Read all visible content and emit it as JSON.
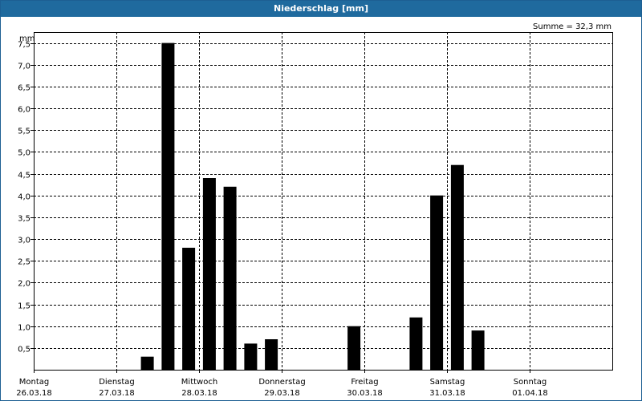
{
  "window": {
    "title": "Niederschlag [mm]"
  },
  "chart_data": {
    "type": "bar",
    "title": "Niederschlag [mm]",
    "ylabel": "mm",
    "annotation": "Summe = 32,3 mm",
    "ylim": [
      0,
      7.75
    ],
    "y_ticks": [
      "0,5",
      "1,0",
      "1,5",
      "2,0",
      "2,5",
      "3,0",
      "3,5",
      "4,0",
      "4,5",
      "5,0",
      "5,5",
      "6,0",
      "6,5",
      "7,0",
      "7,5"
    ],
    "y_tick_values": [
      0.5,
      1.0,
      1.5,
      2.0,
      2.5,
      3.0,
      3.5,
      4.0,
      4.5,
      5.0,
      5.5,
      6.0,
      6.5,
      7.0,
      7.5
    ],
    "day_labels": [
      {
        "day": "Montag",
        "date": "26.03.18"
      },
      {
        "day": "Dienstag",
        "date": "27.03.18"
      },
      {
        "day": "Mittwoch",
        "date": "28.03.18"
      },
      {
        "day": "Donnerstag",
        "date": "29.03.18"
      },
      {
        "day": "Freitag",
        "date": "30.03.18"
      },
      {
        "day": "Samstag",
        "date": "31.03.18"
      },
      {
        "day": "Sonntag",
        "date": "01.04.18"
      }
    ],
    "interval_hours": 6,
    "values": [
      0,
      0,
      0,
      0,
      0,
      0.3,
      7.5,
      2.8,
      4.4,
      4.2,
      0.6,
      0.7,
      0,
      0,
      0,
      1.0,
      0,
      0,
      1.2,
      4.0,
      4.7,
      0.9
    ],
    "grid": true,
    "colors": {
      "bar": "#000000",
      "grid": "#000000",
      "title_bg": "#1f6a9e"
    }
  }
}
